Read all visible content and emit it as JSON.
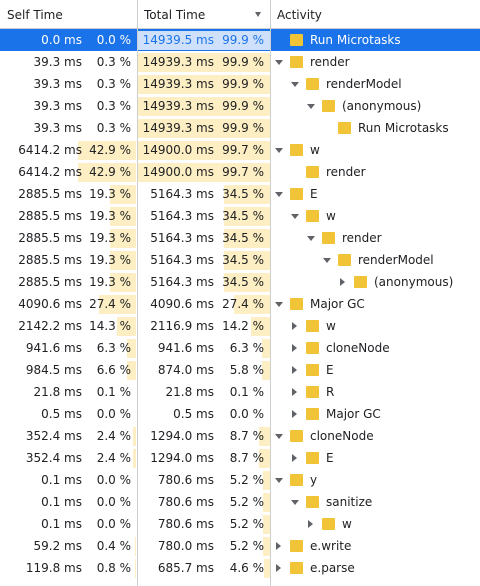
{
  "columns": {
    "self_time": "Self Time",
    "total_time": "Total Time",
    "activity": "Activity"
  },
  "rows": [
    {
      "self_ms": "0.0 ms",
      "self_pct": "0.0 %",
      "self_frac": 0.0,
      "total_ms": "14939.5 ms",
      "total_pct": "99.9 %",
      "total_frac": 0.999,
      "depth": 0,
      "toggle": "none",
      "name": "Run Microtasks",
      "selected": true
    },
    {
      "self_ms": "39.3 ms",
      "self_pct": "0.3 %",
      "self_frac": 0.003,
      "total_ms": "14939.3 ms",
      "total_pct": "99.9 %",
      "total_frac": 0.999,
      "depth": 0,
      "toggle": "expanded",
      "name": "render"
    },
    {
      "self_ms": "39.3 ms",
      "self_pct": "0.3 %",
      "self_frac": 0.003,
      "total_ms": "14939.3 ms",
      "total_pct": "99.9 %",
      "total_frac": 0.999,
      "depth": 1,
      "toggle": "expanded",
      "name": "renderModel"
    },
    {
      "self_ms": "39.3 ms",
      "self_pct": "0.3 %",
      "self_frac": 0.003,
      "total_ms": "14939.3 ms",
      "total_pct": "99.9 %",
      "total_frac": 0.999,
      "depth": 2,
      "toggle": "expanded",
      "name": "(anonymous)"
    },
    {
      "self_ms": "39.3 ms",
      "self_pct": "0.3 %",
      "self_frac": 0.003,
      "total_ms": "14939.3 ms",
      "total_pct": "99.9 %",
      "total_frac": 0.999,
      "depth": 3,
      "toggle": "none",
      "name": "Run Microtasks"
    },
    {
      "self_ms": "6414.2 ms",
      "self_pct": "42.9 %",
      "self_frac": 0.429,
      "total_ms": "14900.0 ms",
      "total_pct": "99.7 %",
      "total_frac": 0.997,
      "depth": 0,
      "toggle": "expanded",
      "name": "w"
    },
    {
      "self_ms": "6414.2 ms",
      "self_pct": "42.9 %",
      "self_frac": 0.429,
      "total_ms": "14900.0 ms",
      "total_pct": "99.7 %",
      "total_frac": 0.997,
      "depth": 1,
      "toggle": "none",
      "name": "render"
    },
    {
      "self_ms": "2885.5 ms",
      "self_pct": "19.3 %",
      "self_frac": 0.193,
      "total_ms": "5164.3 ms",
      "total_pct": "34.5 %",
      "total_frac": 0.345,
      "depth": 0,
      "toggle": "expanded",
      "name": "E"
    },
    {
      "self_ms": "2885.5 ms",
      "self_pct": "19.3 %",
      "self_frac": 0.193,
      "total_ms": "5164.3 ms",
      "total_pct": "34.5 %",
      "total_frac": 0.345,
      "depth": 1,
      "toggle": "expanded",
      "name": "w"
    },
    {
      "self_ms": "2885.5 ms",
      "self_pct": "19.3 %",
      "self_frac": 0.193,
      "total_ms": "5164.3 ms",
      "total_pct": "34.5 %",
      "total_frac": 0.345,
      "depth": 2,
      "toggle": "expanded",
      "name": "render"
    },
    {
      "self_ms": "2885.5 ms",
      "self_pct": "19.3 %",
      "self_frac": 0.193,
      "total_ms": "5164.3 ms",
      "total_pct": "34.5 %",
      "total_frac": 0.345,
      "depth": 3,
      "toggle": "expanded",
      "name": "renderModel"
    },
    {
      "self_ms": "2885.5 ms",
      "self_pct": "19.3 %",
      "self_frac": 0.193,
      "total_ms": "5164.3 ms",
      "total_pct": "34.5 %",
      "total_frac": 0.345,
      "depth": 4,
      "toggle": "collapsed",
      "name": "(anonymous)"
    },
    {
      "self_ms": "4090.6 ms",
      "self_pct": "27.4 %",
      "self_frac": 0.274,
      "total_ms": "4090.6 ms",
      "total_pct": "27.4 %",
      "total_frac": 0.274,
      "depth": 0,
      "toggle": "expanded",
      "name": "Major GC"
    },
    {
      "self_ms": "2142.2 ms",
      "self_pct": "14.3 %",
      "self_frac": 0.143,
      "total_ms": "2116.9 ms",
      "total_pct": "14.2 %",
      "total_frac": 0.142,
      "depth": 1,
      "toggle": "collapsed",
      "name": "w"
    },
    {
      "self_ms": "941.6 ms",
      "self_pct": "6.3 %",
      "self_frac": 0.063,
      "total_ms": "941.6 ms",
      "total_pct": "6.3 %",
      "total_frac": 0.063,
      "depth": 1,
      "toggle": "collapsed",
      "name": "cloneNode"
    },
    {
      "self_ms": "984.5 ms",
      "self_pct": "6.6 %",
      "self_frac": 0.066,
      "total_ms": "874.0 ms",
      "total_pct": "5.8 %",
      "total_frac": 0.058,
      "depth": 1,
      "toggle": "collapsed",
      "name": "E"
    },
    {
      "self_ms": "21.8 ms",
      "self_pct": "0.1 %",
      "self_frac": 0.001,
      "total_ms": "21.8 ms",
      "total_pct": "0.1 %",
      "total_frac": 0.001,
      "depth": 1,
      "toggle": "collapsed",
      "name": "R"
    },
    {
      "self_ms": "0.5 ms",
      "self_pct": "0.0 %",
      "self_frac": 0.0,
      "total_ms": "0.5 ms",
      "total_pct": "0.0 %",
      "total_frac": 0.0,
      "depth": 1,
      "toggle": "collapsed",
      "name": "Major GC"
    },
    {
      "self_ms": "352.4 ms",
      "self_pct": "2.4 %",
      "self_frac": 0.024,
      "total_ms": "1294.0 ms",
      "total_pct": "8.7 %",
      "total_frac": 0.087,
      "depth": 0,
      "toggle": "expanded",
      "name": "cloneNode"
    },
    {
      "self_ms": "352.4 ms",
      "self_pct": "2.4 %",
      "self_frac": 0.024,
      "total_ms": "1294.0 ms",
      "total_pct": "8.7 %",
      "total_frac": 0.087,
      "depth": 1,
      "toggle": "collapsed",
      "name": "E"
    },
    {
      "self_ms": "0.1 ms",
      "self_pct": "0.0 %",
      "self_frac": 0.0,
      "total_ms": "780.6 ms",
      "total_pct": "5.2 %",
      "total_frac": 0.052,
      "depth": 0,
      "toggle": "expanded",
      "name": "y"
    },
    {
      "self_ms": "0.1 ms",
      "self_pct": "0.0 %",
      "self_frac": 0.0,
      "total_ms": "780.6 ms",
      "total_pct": "5.2 %",
      "total_frac": 0.052,
      "depth": 1,
      "toggle": "expanded",
      "name": "sanitize"
    },
    {
      "self_ms": "0.1 ms",
      "self_pct": "0.0 %",
      "self_frac": 0.0,
      "total_ms": "780.6 ms",
      "total_pct": "5.2 %",
      "total_frac": 0.052,
      "depth": 2,
      "toggle": "collapsed",
      "name": "w"
    },
    {
      "self_ms": "59.2 ms",
      "self_pct": "0.4 %",
      "self_frac": 0.004,
      "total_ms": "780.0 ms",
      "total_pct": "5.2 %",
      "total_frac": 0.052,
      "depth": 0,
      "toggle": "collapsed",
      "name": "e.write"
    },
    {
      "self_ms": "119.8 ms",
      "self_pct": "0.8 %",
      "self_frac": 0.008,
      "total_ms": "685.7 ms",
      "total_pct": "4.6 %",
      "total_frac": 0.046,
      "depth": 0,
      "toggle": "collapsed",
      "name": "e.parse"
    }
  ],
  "colors": {
    "selected": "#1a73e8",
    "bar": "#fdefc3",
    "folder": "#f0c436"
  }
}
